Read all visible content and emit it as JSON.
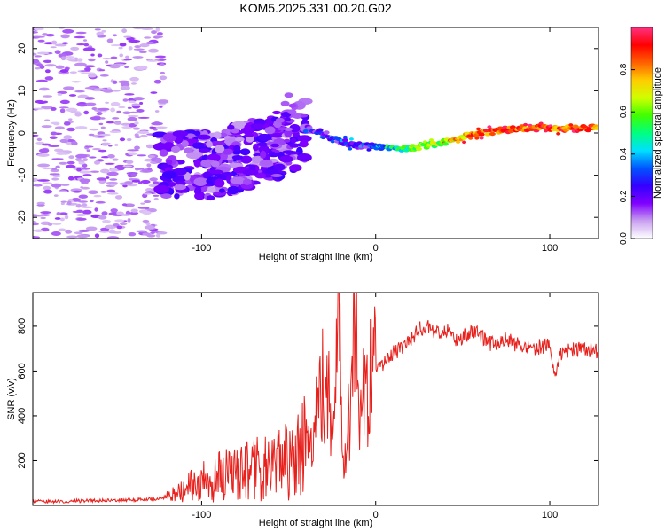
{
  "title": "KOM5.2025.331.00.20.G02",
  "chart_data": [
    {
      "type": "heatmap",
      "title": "KOM5.2025.331.00.20.G02",
      "xlabel": "Height of straight line (km)",
      "ylabel": "Frequency (Hz)",
      "xlim": [
        -197,
        128
      ],
      "ylim": [
        -25,
        25
      ],
      "xticks": [
        -100,
        0,
        100
      ],
      "yticks": [
        -20,
        -10,
        0,
        10,
        20
      ],
      "xtick_labels": [
        "-100",
        "0",
        "100"
      ],
      "ytick_labels": [
        "-20",
        "-10",
        "0",
        "10",
        "20"
      ],
      "colorbar": {
        "label": "Normalized spectral amplitude",
        "range": [
          0,
          1
        ],
        "ticks": [
          0.0,
          0.2,
          0.4,
          0.6,
          0.8
        ],
        "tick_labels": [
          "0.0",
          "0.2",
          "0.4",
          "0.6",
          "0.8"
        ],
        "colors": [
          "#ffffff",
          "#c9a0f0",
          "#8000ff",
          "#3300ff",
          "#0055ff",
          "#00e0ff",
          "#00ff80",
          "#40ff00",
          "#d0ff00",
          "#ffcc00",
          "#ff6000",
          "#ff0000",
          "#ff3080"
        ]
      },
      "trace_center": [
        {
          "x": -125,
          "y": -7
        },
        {
          "x": -100,
          "y": -8
        },
        {
          "x": -80,
          "y": -6
        },
        {
          "x": -65,
          "y": -4
        },
        {
          "x": -50,
          "y": -2
        },
        {
          "x": -40,
          "y": 1
        },
        {
          "x": -30,
          "y": 0
        },
        {
          "x": -20,
          "y": -2
        },
        {
          "x": -10,
          "y": -3
        },
        {
          "x": 0,
          "y": -3
        },
        {
          "x": 10,
          "y": -4
        },
        {
          "x": 20,
          "y": -3.5
        },
        {
          "x": 30,
          "y": -3
        },
        {
          "x": 40,
          "y": -2
        },
        {
          "x": 50,
          "y": -1
        },
        {
          "x": 60,
          "y": 0
        },
        {
          "x": 70,
          "y": 0.5
        },
        {
          "x": 80,
          "y": 1
        },
        {
          "x": 90,
          "y": 1.2
        },
        {
          "x": 100,
          "y": 1
        },
        {
          "x": 110,
          "y": 1.2
        },
        {
          "x": 128,
          "y": 1.2
        }
      ]
    },
    {
      "type": "line",
      "xlabel": "Height of straight line (km)",
      "ylabel": "SNR (v/v)",
      "xlim": [
        -197,
        128
      ],
      "ylim": [
        0,
        950
      ],
      "xticks": [
        -100,
        0,
        100
      ],
      "yticks": [
        200,
        400,
        600,
        800
      ],
      "xtick_labels": [
        "-100",
        "0",
        "100"
      ],
      "ytick_labels": [
        "200",
        "400",
        "600",
        "800"
      ],
      "color": "#e8201c",
      "series": [
        {
          "name": "SNR",
          "x": [
            -197,
            -180,
            -160,
            -140,
            -125,
            -115,
            -105,
            -95,
            -85,
            -75,
            -65,
            -55,
            -45,
            -38,
            -32,
            -28,
            -24,
            -21,
            -19,
            -17,
            -14,
            -12,
            -10,
            -7,
            -4,
            0,
            5,
            10,
            15,
            20,
            25,
            30,
            35,
            40,
            45,
            50,
            55,
            60,
            65,
            70,
            75,
            80,
            85,
            90,
            95,
            100,
            103,
            105,
            108,
            112,
            118,
            128
          ],
          "values": [
            20,
            18,
            22,
            25,
            30,
            45,
            90,
            120,
            140,
            155,
            170,
            180,
            220,
            320,
            480,
            560,
            380,
            950,
            200,
            300,
            420,
            950,
            430,
            480,
            560,
            600,
            640,
            680,
            700,
            740,
            790,
            800,
            770,
            790,
            740,
            750,
            780,
            760,
            720,
            730,
            750,
            720,
            710,
            700,
            710,
            720,
            560,
            650,
            700,
            690,
            700,
            690
          ]
        }
      ]
    }
  ]
}
